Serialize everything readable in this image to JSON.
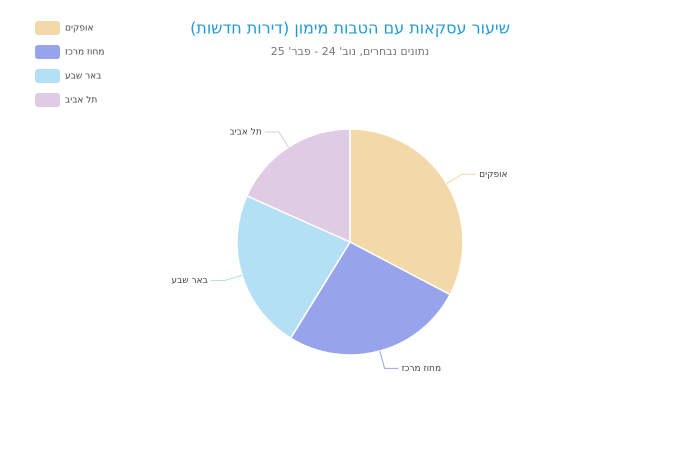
{
  "chart_data": {
    "type": "pie",
    "title": "שיעור עסקאות עם הטבות מימון (דירות חדשות)",
    "subtitle": "נתונים נבחרים, נוב' 24 - פבר' 25",
    "categories": [
      "אופקים",
      "מחוז מרכז",
      "באר שבע",
      "תל אביב"
    ],
    "values": [
      32.7,
      26.1,
      22.9,
      18.3
    ],
    "colors": [
      "#f3d9a8",
      "#97a3ea",
      "#b3e0f4",
      "#e0cbe5"
    ],
    "legend": "top-left"
  }
}
